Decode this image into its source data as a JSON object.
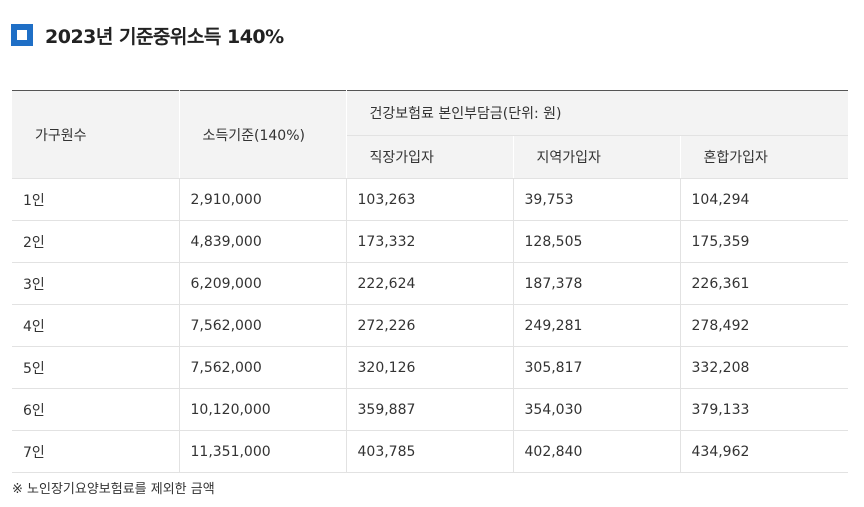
{
  "title": "2023년 기준중위소득 140%",
  "table": {
    "headers": {
      "household": "가구원수",
      "income": "소득기준(140%)",
      "group": "건강보험료 본인부담금(단위: 원)",
      "sub": [
        "직장가입자",
        "지역가입자",
        "혼합가입자"
      ]
    },
    "rows": [
      [
        "1인",
        "2,910,000",
        "103,263",
        "39,753",
        "104,294"
      ],
      [
        "2인",
        "4,839,000",
        "173,332",
        "128,505",
        "175,359"
      ],
      [
        "3인",
        "6,209,000",
        "222,624",
        "187,378",
        "226,361"
      ],
      [
        "4인",
        "7,562,000",
        "272,226",
        "249,281",
        "278,492"
      ],
      [
        "5인",
        "7,562,000",
        "320,126",
        "305,817",
        "332,208"
      ],
      [
        "6인",
        "10,120,000",
        "359,887",
        "354,030",
        "379,133"
      ],
      [
        "7인",
        "11,351,000",
        "403,785",
        "402,840",
        "434,962"
      ]
    ]
  },
  "note": "※ 노인장기요양보험료를 제외한 금액",
  "colors": {
    "accent": "#1f6fc6",
    "header_bg": "#f3f3f3",
    "border": "#e2e2e2"
  }
}
